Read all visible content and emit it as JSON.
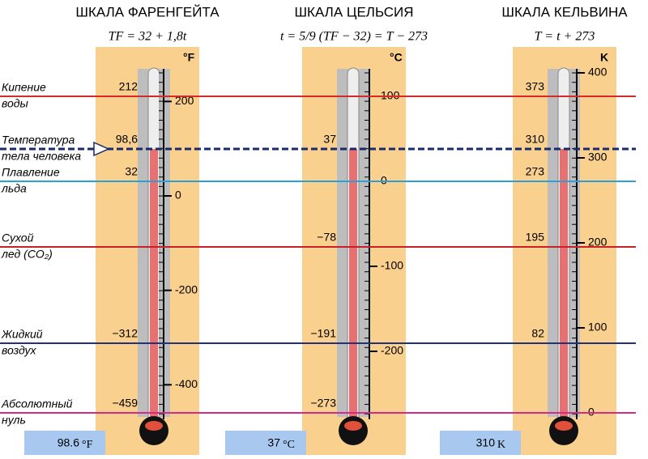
{
  "events": [
    {
      "lines": [
        "Кипение",
        "воды"
      ],
      "color": "#d42a2a"
    },
    {
      "lines": [
        "Температура",
        "тела человека"
      ],
      "color": "#1a2a6a"
    },
    {
      "lines": [
        "Плавление",
        "льда"
      ],
      "color": "#2aa0d4"
    },
    {
      "lines": [
        "Сухой",
        "лед (CO₂)"
      ],
      "color": "#c8202a"
    },
    {
      "lines": [
        "Жидкий",
        "воздух"
      ],
      "color": "#23307a"
    },
    {
      "lines": [
        "Абсолютный",
        "нуль"
      ],
      "color": "#d42a8a"
    }
  ],
  "scales": [
    {
      "title": "ШКАЛА ФАРЕНГЕЙТА",
      "formula": "TF = 32 + 1,8t",
      "unit": "°F",
      "ticks": [
        200,
        0,
        -200,
        -400
      ],
      "points": [
        "212",
        "98,6",
        "32",
        null,
        "−312",
        "−459"
      ],
      "reading": {
        "value": "98.6",
        "unit": "°F"
      }
    },
    {
      "title": "ШКАЛА ЦЕЛЬСИЯ",
      "formula": "t = 5/9 (TF − 32) = T − 273",
      "unit": "°C",
      "ticks": [
        100,
        0,
        -100,
        -200
      ],
      "points": [
        null,
        "37",
        null,
        "−78",
        "−191",
        "−273"
      ],
      "reading": {
        "value": "37",
        "unit": "°C"
      }
    },
    {
      "title": "ШКАЛА КЕЛЬВИНА",
      "formula": "T = t + 273",
      "unit": "K",
      "ticks": [
        400,
        300,
        200,
        100,
        0
      ],
      "points": [
        "373",
        "310",
        "273",
        "195",
        "82",
        null
      ],
      "reading": {
        "value": "310",
        "unit": "K"
      }
    }
  ]
}
